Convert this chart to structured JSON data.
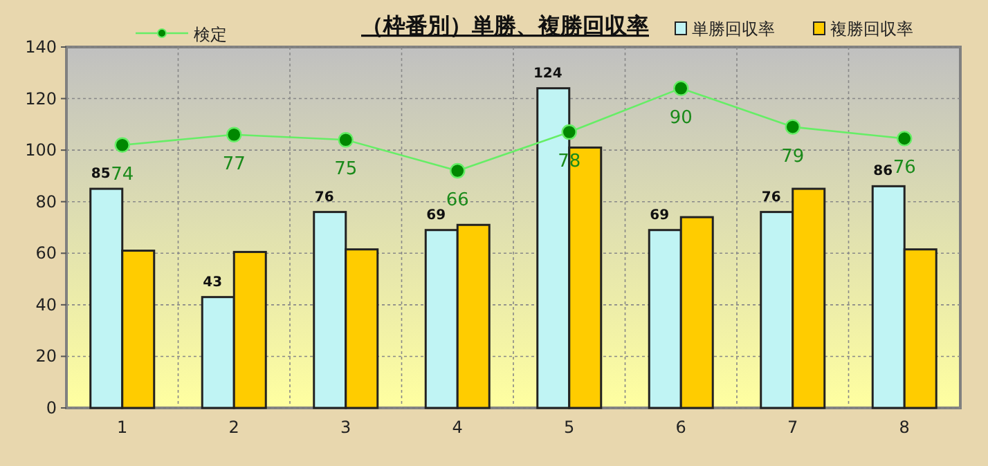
{
  "chart_data": {
    "type": "bar",
    "title": "（枠番別）単勝、複勝回収率",
    "categories": [
      "1",
      "2",
      "3",
      "4",
      "5",
      "6",
      "7",
      "8"
    ],
    "ylim": [
      0,
      140
    ],
    "yticks": [
      0,
      20,
      40,
      60,
      80,
      100,
      120,
      140
    ],
    "grid": true,
    "legend": "top",
    "series": [
      {
        "name": "単勝回収率",
        "color": "#c0f4f4",
        "values": [
          85,
          43,
          76,
          69,
          124,
          69,
          76,
          86
        ],
        "value_labels": [
          "85",
          "43",
          "76",
          "69",
          "124",
          "69",
          "76",
          "86"
        ]
      },
      {
        "name": "複勝回収率",
        "color": "#ffcc00",
        "values": [
          61,
          60.5,
          61.5,
          71,
          101,
          74,
          85,
          61.5
        ]
      },
      {
        "name": "検定",
        "type": "line",
        "color": "#66ee66",
        "marker": "circle",
        "values": [
          102,
          106,
          104,
          92,
          107,
          124,
          109,
          104.5
        ]
      }
    ],
    "annotations": [
      {
        "text": "74",
        "x": "1",
        "y": 102
      },
      {
        "text": "77",
        "x": "2",
        "y": 106
      },
      {
        "text": "75",
        "x": "3",
        "y": 104
      },
      {
        "text": "66",
        "x": "4",
        "y": 92
      },
      {
        "text": "78",
        "x": "5",
        "y": 107
      },
      {
        "text": "90",
        "x": "6",
        "y": 124
      },
      {
        "text": "79",
        "x": "7",
        "y": 109
      },
      {
        "text": "76",
        "x": "8",
        "y": 104.5
      }
    ]
  }
}
